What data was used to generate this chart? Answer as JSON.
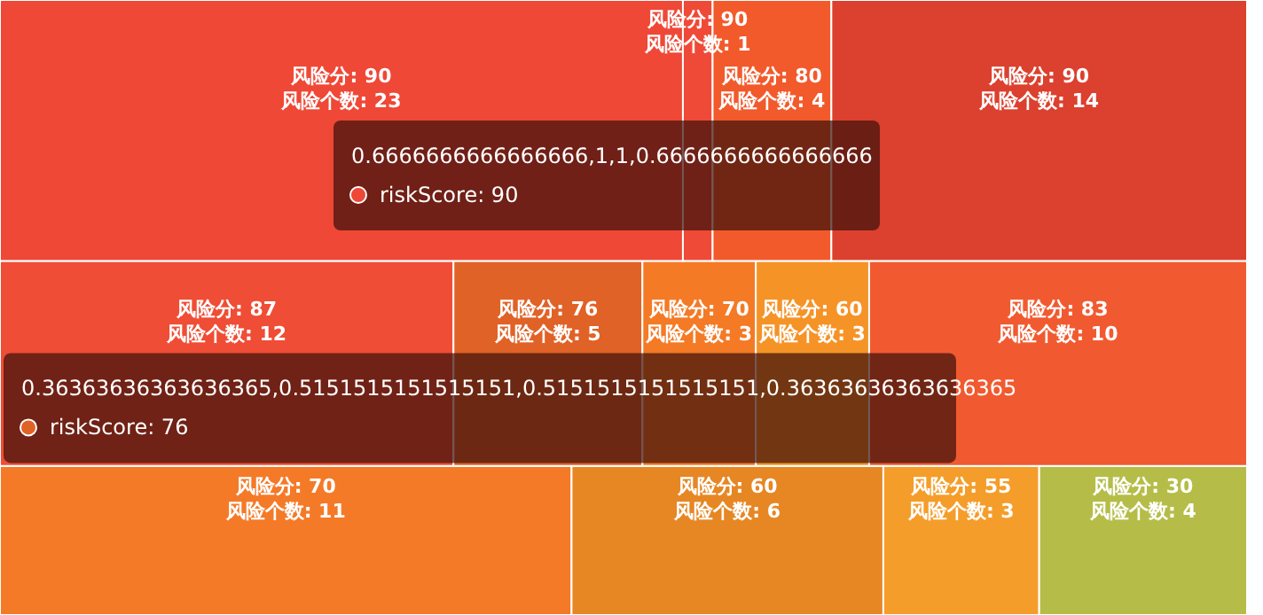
{
  "chart_data": [
    {
      "type": "other",
      "categories": [
        "风险分: 90",
        "风险分: 90",
        "风险分: 80",
        "风险分: 90"
      ],
      "values": [
        23,
        1,
        4,
        14
      ],
      "value_labels": [
        "风险个数: 23",
        "风险个数: 1",
        "风险个数: 4",
        "风险个数: 14"
      ],
      "colors": [
        "#ef4836",
        "#ef4a37",
        "#f25a2b",
        "#dc402e"
      ],
      "annotations": [
        "0.6666666666666666,1,1,0.6666666666666666",
        "riskScore: 90"
      ]
    },
    {
      "type": "other",
      "categories": [
        "风险分: 87",
        "风险分: 76",
        "风险分: 70",
        "风险分: 60",
        "风险分: 83"
      ],
      "values": [
        12,
        5,
        3,
        3,
        10
      ],
      "value_labels": [
        "风险个数: 12",
        "风险个数: 5",
        "风险个数: 3",
        "风险个数: 3",
        "风险个数: 10"
      ],
      "colors": [
        "#ef4d35",
        "#e06226",
        "#f47a26",
        "#f59327",
        "#f15a30"
      ],
      "annotations": [
        "0.36363636363636365,0.5151515151515151,0.5151515151515151,0.36363636363636365",
        "riskScore: 76"
      ]
    },
    {
      "type": "other",
      "categories": [
        "风险分: 70",
        "风险分: 60",
        "风险分: 55",
        "风险分: 30"
      ],
      "values": [
        11,
        6,
        3,
        4
      ],
      "value_labels": [
        "风险个数: 11",
        "风险个数: 6",
        "风险个数: 3",
        "风险个数: 4"
      ],
      "colors": [
        "#f47a28",
        "#e68724",
        "#f59d2a",
        "#b5bd48"
      ]
    }
  ]
}
